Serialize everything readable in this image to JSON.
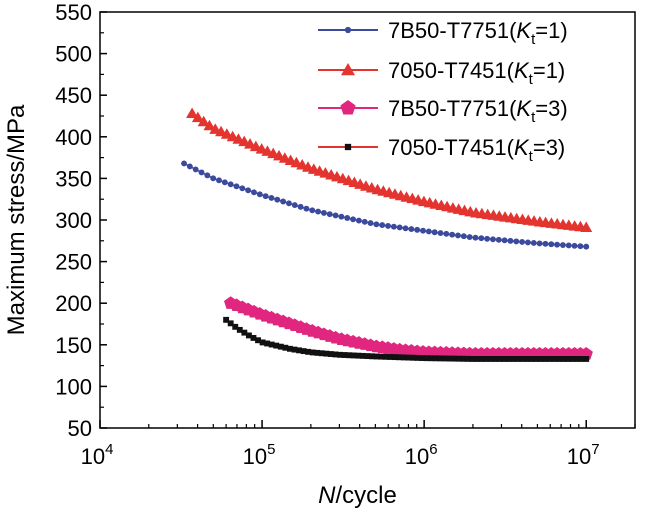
{
  "chart_data": {
    "type": "scatter",
    "xscale": "log",
    "xlim": [
      10000,
      20000000
    ],
    "ylim": [
      50,
      550
    ],
    "xticks": [
      {
        "value": 10000,
        "base": "10",
        "exp": "4"
      },
      {
        "value": 100000,
        "base": "10",
        "exp": "5"
      },
      {
        "value": 1000000,
        "base": "10",
        "exp": "6"
      },
      {
        "value": 10000000,
        "base": "10",
        "exp": "7"
      }
    ],
    "yticks": [
      "50",
      "100",
      "150",
      "200",
      "250",
      "300",
      "350",
      "400",
      "450",
      "500",
      "550"
    ],
    "xlabel": {
      "italic": "N",
      "rest": "/cycle"
    },
    "ylabel": "Maximum stress/MPa",
    "legend_position": "top-right",
    "grid": false,
    "series": [
      {
        "name": {
          "prefix": "7B50-T7751(",
          "italic": "K",
          "sub": "t",
          "suffix": "=1)"
        },
        "color": "#3b4a9c",
        "marker": "circle",
        "x": [
          33000,
          50000,
          100000,
          200000,
          500000,
          1000000,
          2000000,
          5000000,
          10000000
        ],
        "y": [
          368,
          350,
          330,
          312,
          295,
          287,
          279,
          272,
          268
        ]
      },
      {
        "name": {
          "prefix": "7050-T7451(",
          "italic": "K",
          "sub": "t",
          "suffix": "=1)"
        },
        "color": "#e3342f",
        "marker": "triangle",
        "x": [
          37000,
          50000,
          100000,
          200000,
          500000,
          1000000,
          2000000,
          5000000,
          10000000
        ],
        "y": [
          428,
          410,
          385,
          362,
          337,
          322,
          309,
          298,
          291
        ]
      },
      {
        "name": {
          "prefix": "7B50-T7751(",
          "italic": "K",
          "sub": "t",
          "suffix": "=3)"
        },
        "color": "#e0267f",
        "marker": "pentagon",
        "x": [
          64000,
          80000,
          100000,
          150000,
          200000,
          300000,
          500000,
          700000,
          1000000,
          2000000,
          5000000,
          10000000
        ],
        "y": [
          200,
          193,
          186,
          175,
          167,
          157,
          148,
          144,
          141,
          139,
          139,
          139
        ]
      },
      {
        "name": {
          "prefix": "7050-T7451(",
          "italic": "K",
          "sub": "t",
          "suffix": "=3)"
        },
        "color": "#111111",
        "line_color": "#e3342f",
        "marker": "square",
        "x": [
          60000,
          70000,
          85000,
          100000,
          150000,
          200000,
          300000,
          500000,
          1000000,
          2000000,
          5000000,
          10000000
        ],
        "y": [
          180,
          170,
          160,
          153,
          145,
          141,
          138,
          136,
          134,
          133,
          133,
          133
        ]
      }
    ]
  }
}
